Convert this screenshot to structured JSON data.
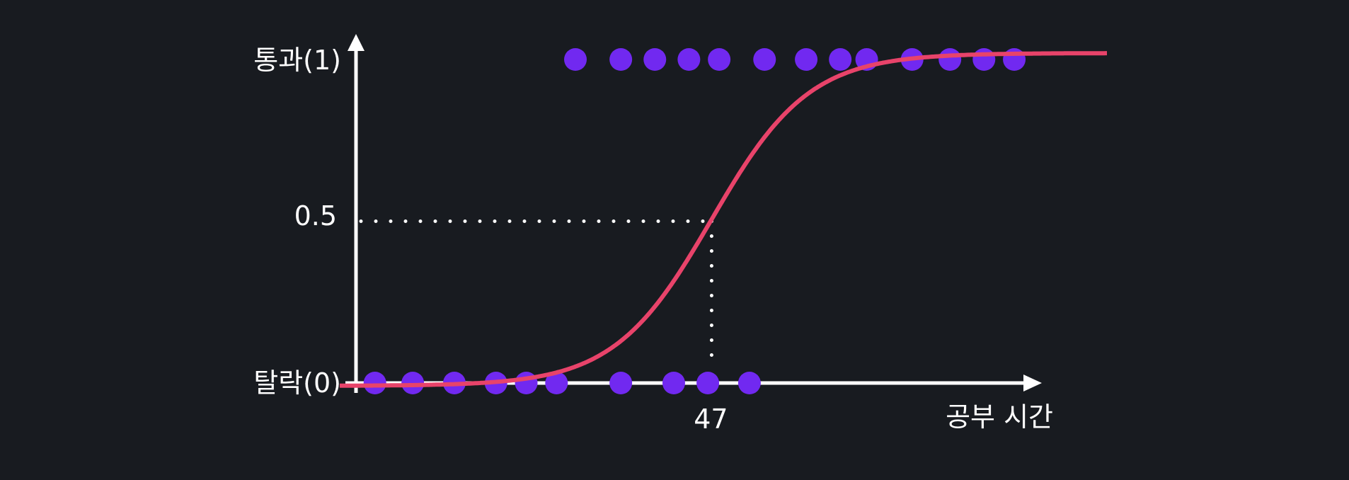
{
  "colors": {
    "background": "#181b20",
    "axis": "#ffffff",
    "curve": "#e8436a",
    "points": "#7129f0",
    "guide": "#ffffff"
  },
  "chart_data": {
    "type": "scatter",
    "x_axis_label": "공부 시간",
    "y_tick_labels": {
      "top": "통과(1)",
      "middle": "0.5",
      "bottom": "탈락(0)"
    },
    "threshold_x_label": "47",
    "threshold": {
      "x": 47,
      "y": 0.5
    },
    "xlim": [
      0,
      100
    ],
    "ylim": [
      0,
      1
    ],
    "series": [
      {
        "name": "",
        "points": [
          {
            "x": 2.5,
            "y": 0
          },
          {
            "x": 7.5,
            "y": 0
          },
          {
            "x": 13,
            "y": 0
          },
          {
            "x": 18.5,
            "y": 0
          },
          {
            "x": 22.5,
            "y": 0
          },
          {
            "x": 26.5,
            "y": 0
          },
          {
            "x": 35,
            "y": 0
          },
          {
            "x": 42,
            "y": 0
          },
          {
            "x": 46.5,
            "y": 0
          },
          {
            "x": 52,
            "y": 0
          },
          {
            "x": 29,
            "y": 1
          },
          {
            "x": 35,
            "y": 1
          },
          {
            "x": 39.5,
            "y": 1
          },
          {
            "x": 44,
            "y": 1
          },
          {
            "x": 48,
            "y": 1
          },
          {
            "x": 54,
            "y": 1
          },
          {
            "x": 59.5,
            "y": 1
          },
          {
            "x": 64,
            "y": 1
          },
          {
            "x": 67.5,
            "y": 1
          },
          {
            "x": 73.5,
            "y": 1
          },
          {
            "x": 78.5,
            "y": 1
          },
          {
            "x": 83,
            "y": 1
          },
          {
            "x": 87,
            "y": 1
          }
        ]
      }
    ],
    "curve": {
      "type": "logistic",
      "midpoint": 47,
      "steepness": 0.155
    }
  }
}
